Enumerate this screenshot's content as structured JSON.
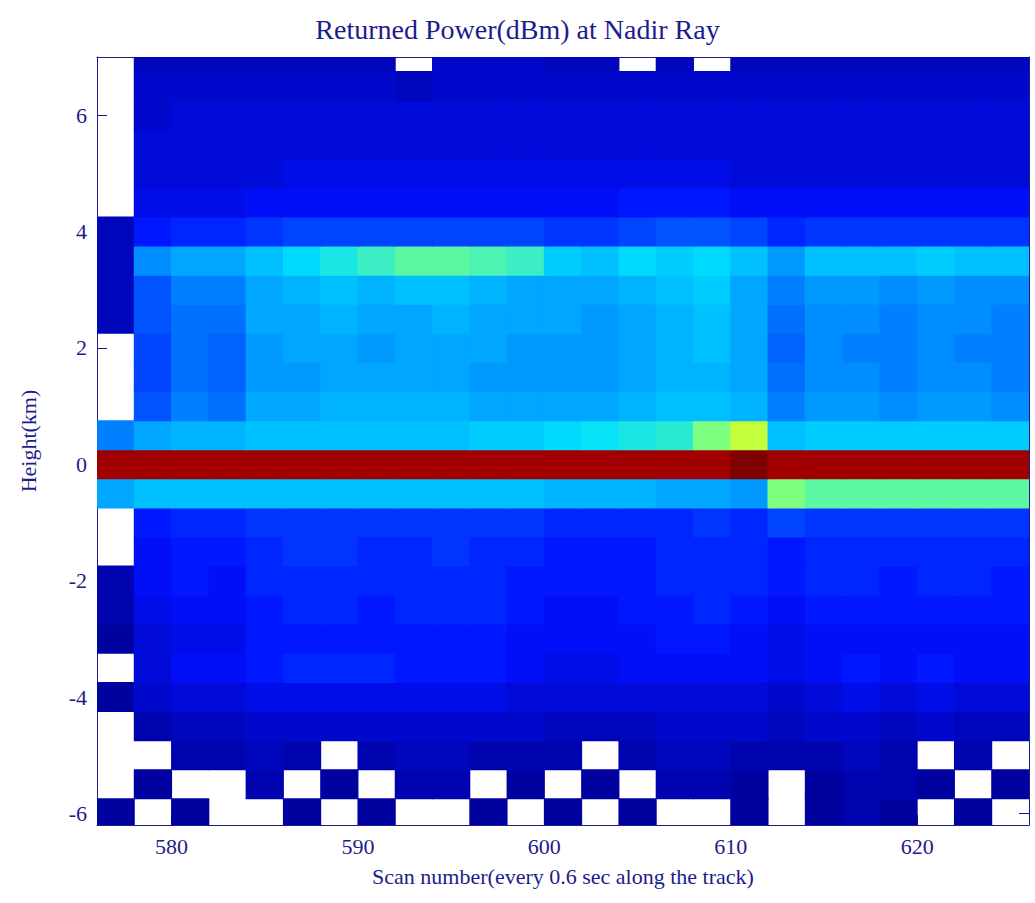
{
  "chart_data": {
    "type": "heatmap",
    "title": "Returned Power(dBm) at Nadir Ray",
    "xlabel": "Scan number(every 0.6 sec along the track)",
    "ylabel": "Height(km)",
    "xlim": [
      576,
      626
    ],
    "xticks": [
      580,
      590,
      600,
      610,
      620
    ],
    "ylim": [
      -6.2,
      7
    ],
    "yticks": [
      -6,
      -4,
      -2,
      0,
      2,
      4,
      6
    ],
    "zlim": [
      -100,
      -40
    ],
    "x": [
      577,
      579,
      581,
      583,
      585,
      587,
      589,
      591,
      593,
      595,
      597,
      599,
      601,
      603,
      605,
      607,
      609,
      611,
      613,
      615,
      617,
      619,
      621,
      623,
      625
    ],
    "y": [
      -6,
      -5.5,
      -5,
      -4.5,
      -4,
      -3.5,
      -3,
      -2.5,
      -2,
      -1.5,
      -1,
      -0.5,
      0,
      0.5,
      1,
      1.5,
      2,
      2.5,
      3,
      3.5,
      4,
      4.5,
      5,
      5.5,
      6,
      6.5,
      7
    ],
    "values": [
      [
        -99,
        null,
        -99,
        null,
        null,
        -99,
        null,
        -99,
        null,
        null,
        -99,
        null,
        -99,
        null,
        -99,
        null,
        null,
        -99,
        null,
        -99,
        -98,
        -99,
        null,
        -99,
        null
      ],
      [
        null,
        -99,
        null,
        null,
        -98,
        null,
        -99,
        null,
        -98,
        -98,
        null,
        -99,
        null,
        -99,
        null,
        -98,
        -98,
        -99,
        null,
        -99,
        -98,
        -98,
        -99,
        null,
        -99
      ],
      [
        null,
        null,
        -98,
        -98,
        -97,
        -98,
        null,
        -98,
        -97,
        -97,
        -98,
        -98,
        -98,
        null,
        -98,
        -97,
        -97,
        -98,
        -98,
        -98,
        -97,
        -98,
        null,
        -98,
        null
      ],
      [
        null,
        -98,
        -97,
        -97,
        -96,
        -96,
        -96,
        -96,
        -96,
        -96,
        -96,
        -96,
        -97,
        -97,
        -97,
        -96,
        -96,
        -96,
        -97,
        -96,
        -96,
        -97,
        -96,
        -97,
        -97
      ],
      [
        -99,
        -96,
        -95,
        -95,
        -94,
        -94,
        -94,
        -94,
        -94,
        -94,
        -94,
        -95,
        -95,
        -95,
        -95,
        -95,
        -95,
        -95,
        -96,
        -95,
        -94,
        -95,
        -94,
        -95,
        -95
      ],
      [
        null,
        -95,
        -93,
        -93,
        -92,
        -91,
        -91,
        -91,
        -92,
        -92,
        -92,
        -93,
        -94,
        -94,
        -93,
        -93,
        -93,
        -93,
        -94,
        -93,
        -92,
        -93,
        -92,
        -93,
        -93
      ],
      [
        -99,
        -95,
        -94,
        -94,
        -92,
        -92,
        -92,
        -92,
        -92,
        -92,
        -92,
        -93,
        -93,
        -93,
        -93,
        -92,
        -92,
        -93,
        -94,
        -93,
        -93,
        -93,
        -93,
        -93,
        -93
      ],
      [
        -98,
        -94,
        -93,
        -93,
        -92,
        -91,
        -91,
        -92,
        -91,
        -91,
        -91,
        -92,
        -93,
        -93,
        -92,
        -92,
        -91,
        -92,
        -93,
        -92,
        -92,
        -92,
        -92,
        -92,
        -92
      ],
      [
        -98,
        -93,
        -92,
        -93,
        -91,
        -91,
        -91,
        -91,
        -91,
        -91,
        -91,
        -92,
        -92,
        -92,
        -92,
        -91,
        -91,
        -91,
        -92,
        -91,
        -91,
        -92,
        -91,
        -91,
        -92
      ],
      [
        null,
        -93,
        -92,
        -92,
        -91,
        -90,
        -90,
        -91,
        -91,
        -90,
        -91,
        -91,
        -92,
        -92,
        -92,
        -91,
        -91,
        -91,
        -92,
        -91,
        -91,
        -91,
        -91,
        -91,
        -91
      ],
      [
        null,
        -92,
        -91,
        -91,
        -90,
        -90,
        -90,
        -90,
        -90,
        -90,
        -90,
        -90,
        -91,
        -91,
        -91,
        -91,
        -90,
        -91,
        -89,
        -90,
        -90,
        -90,
        -90,
        -90,
        -90
      ],
      [
        -82,
        -80,
        -80,
        -80,
        -80,
        -80,
        -80,
        -80,
        -80,
        -80,
        -80,
        -80,
        -81,
        -81,
        -81,
        -82,
        -82,
        -83,
        -70,
        -72,
        -72,
        -72,
        -72,
        -72,
        -72
      ],
      [
        -42,
        -42,
        -42,
        -42,
        -42,
        -42,
        -42,
        -42,
        -42,
        -42,
        -42,
        -42,
        -42,
        -42,
        -42,
        -42,
        -42,
        -40,
        -42,
        -42,
        -42,
        -42,
        -42,
        -42,
        -42
      ],
      [
        -85,
        -82,
        -81,
        -81,
        -80,
        -80,
        -80,
        -80,
        -80,
        -80,
        -79,
        -79,
        -78,
        -77,
        -76,
        -75,
        -70,
        -66,
        -80,
        -79,
        -79,
        -79,
        -79,
        -79,
        -79
      ],
      [
        null,
        -88,
        -85,
        -86,
        -82,
        -82,
        -81,
        -81,
        -81,
        -81,
        -82,
        -82,
        -82,
        -82,
        -81,
        -80,
        -80,
        -81,
        -85,
        -83,
        -83,
        -84,
        -83,
        -83,
        -84
      ],
      [
        null,
        -89,
        -86,
        -87,
        -83,
        -83,
        -82,
        -82,
        -82,
        -82,
        -83,
        -83,
        -83,
        -83,
        -82,
        -81,
        -81,
        -82,
        -86,
        -84,
        -84,
        -85,
        -84,
        -84,
        -85
      ],
      [
        null,
        -89,
        -86,
        -87,
        -83,
        -82,
        -82,
        -83,
        -82,
        -82,
        -82,
        -83,
        -83,
        -83,
        -82,
        -81,
        -80,
        -82,
        -87,
        -84,
        -85,
        -85,
        -84,
        -85,
        -85
      ],
      [
        -97,
        -88,
        -86,
        -86,
        -82,
        -82,
        -81,
        -82,
        -82,
        -81,
        -82,
        -82,
        -82,
        -83,
        -82,
        -81,
        -80,
        -82,
        -86,
        -84,
        -84,
        -85,
        -84,
        -84,
        -85
      ],
      [
        -97,
        -88,
        -85,
        -85,
        -82,
        -81,
        -80,
        -81,
        -80,
        -80,
        -81,
        -82,
        -82,
        -82,
        -81,
        -80,
        -79,
        -82,
        -85,
        -83,
        -83,
        -84,
        -83,
        -84,
        -84
      ],
      [
        -97,
        -84,
        -82,
        -82,
        -80,
        -78,
        -76,
        -74,
        -72,
        -72,
        -73,
        -74,
        -79,
        -80,
        -78,
        -79,
        -78,
        -80,
        -83,
        -80,
        -80,
        -80,
        -79,
        -80,
        -80
      ],
      [
        -97,
        -92,
        -91,
        -91,
        -90,
        -89,
        -89,
        -89,
        -89,
        -89,
        -89,
        -89,
        -90,
        -90,
        -89,
        -88,
        -88,
        -89,
        -91,
        -90,
        -90,
        -90,
        -90,
        -90,
        -90
      ],
      [
        null,
        -94,
        -94,
        -94,
        -93,
        -93,
        -93,
        -93,
        -93,
        -93,
        -93,
        -93,
        -93,
        -93,
        -92,
        -92,
        -92,
        -93,
        -93,
        -93,
        -93,
        -93,
        -93,
        -93,
        -93
      ],
      [
        null,
        -95,
        -95,
        -95,
        -95,
        -94,
        -94,
        -94,
        -94,
        -94,
        -94,
        -94,
        -94,
        -94,
        -94,
        -94,
        -94,
        -95,
        -95,
        -95,
        -95,
        -95,
        -95,
        -95,
        -95
      ],
      [
        null,
        -95,
        -95,
        -95,
        -95,
        -95,
        -95,
        -95,
        -95,
        -95,
        -95,
        -95,
        -95,
        -95,
        -95,
        -95,
        -95,
        -95,
        -95,
        -95,
        -95,
        -95,
        -95,
        -95,
        -95
      ],
      [
        null,
        -96,
        -95,
        -95,
        -95,
        -95,
        -95,
        -95,
        -95,
        -95,
        -95,
        -95,
        -95,
        -95,
        -95,
        -95,
        -95,
        -95,
        -95,
        -95,
        -95,
        -95,
        -95,
        -95,
        -95
      ],
      [
        null,
        -96,
        -96,
        -96,
        -96,
        -96,
        -96,
        -96,
        -97,
        -96,
        -96,
        -96,
        -96,
        -96,
        -96,
        -96,
        -96,
        -96,
        -96,
        -96,
        -96,
        -96,
        -96,
        -96,
        -96
      ],
      [
        null,
        -97,
        -97,
        -97,
        -97,
        -97,
        -97,
        -97,
        null,
        -96,
        -96,
        -96,
        -97,
        -97,
        null,
        -97,
        null,
        -97,
        -97,
        -97,
        -97,
        -97,
        -97,
        -97,
        -97
      ]
    ]
  }
}
